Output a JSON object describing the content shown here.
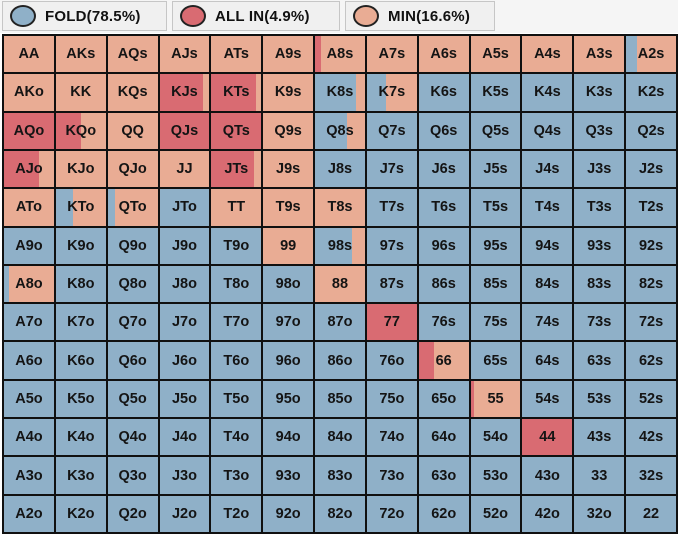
{
  "colors": {
    "fold": "#8fb0c8",
    "allin": "#d96b72",
    "min": "#e9ac94"
  },
  "legend": [
    {
      "action": "fold",
      "label": "FOLD(78.5%)"
    },
    {
      "action": "allin",
      "label": "ALL IN(4.9%)"
    },
    {
      "action": "min",
      "label": "MIN(16.6%)"
    }
  ],
  "grid": {
    "rows": [
      [
        "AA",
        "AKs",
        "AQs",
        "AJs",
        "ATs",
        "A9s",
        "A8s",
        "A7s",
        "A6s",
        "A5s",
        "A4s",
        "A3s",
        "A2s"
      ],
      [
        "AKo",
        "KK",
        "KQs",
        "KJs",
        "KTs",
        "K9s",
        "K8s",
        "K7s",
        "K6s",
        "K5s",
        "K4s",
        "K3s",
        "K2s"
      ],
      [
        "AQo",
        "KQo",
        "QQ",
        "QJs",
        "QTs",
        "Q9s",
        "Q8s",
        "Q7s",
        "Q6s",
        "Q5s",
        "Q4s",
        "Q3s",
        "Q2s"
      ],
      [
        "AJo",
        "KJo",
        "QJo",
        "JJ",
        "JTs",
        "J9s",
        "J8s",
        "J7s",
        "J6s",
        "J5s",
        "J4s",
        "J3s",
        "J2s"
      ],
      [
        "ATo",
        "KTo",
        "QTo",
        "JTo",
        "TT",
        "T9s",
        "T8s",
        "T7s",
        "T6s",
        "T5s",
        "T4s",
        "T3s",
        "T2s"
      ],
      [
        "A9o",
        "K9o",
        "Q9o",
        "J9o",
        "T9o",
        "99",
        "98s",
        "97s",
        "96s",
        "95s",
        "94s",
        "93s",
        "92s"
      ],
      [
        "A8o",
        "K8o",
        "Q8o",
        "J8o",
        "T8o",
        "98o",
        "88",
        "87s",
        "86s",
        "85s",
        "84s",
        "83s",
        "82s"
      ],
      [
        "A7o",
        "K7o",
        "Q7o",
        "J7o",
        "T7o",
        "97o",
        "87o",
        "77",
        "76s",
        "75s",
        "74s",
        "73s",
        "72s"
      ],
      [
        "A6o",
        "K6o",
        "Q6o",
        "J6o",
        "T6o",
        "96o",
        "86o",
        "76o",
        "66",
        "65s",
        "64s",
        "63s",
        "62s"
      ],
      [
        "A5o",
        "K5o",
        "Q5o",
        "J5o",
        "T5o",
        "95o",
        "85o",
        "75o",
        "65o",
        "55",
        "54s",
        "53s",
        "52s"
      ],
      [
        "A4o",
        "K4o",
        "Q4o",
        "J4o",
        "T4o",
        "94o",
        "84o",
        "74o",
        "64o",
        "54o",
        "44",
        "43s",
        "42s"
      ],
      [
        "A3o",
        "K3o",
        "Q3o",
        "J3o",
        "T3o",
        "93o",
        "83o",
        "73o",
        "63o",
        "53o",
        "43o",
        "33",
        "32s"
      ],
      [
        "A2o",
        "K2o",
        "Q2o",
        "J2o",
        "T2o",
        "92o",
        "82o",
        "72o",
        "62o",
        "52o",
        "42o",
        "32o",
        "22"
      ]
    ],
    "mix": {
      "AA": [
        0,
        0,
        1
      ],
      "AKs": [
        0,
        0,
        1
      ],
      "AQs": [
        0,
        0,
        1
      ],
      "AJs": [
        0,
        0,
        1
      ],
      "ATs": [
        0,
        0,
        1
      ],
      "A9s": [
        0,
        0,
        1
      ],
      "A8s": [
        0,
        0.12,
        0.88
      ],
      "A7s": [
        0,
        0,
        1
      ],
      "A6s": [
        0,
        0,
        1
      ],
      "A5s": [
        0,
        0,
        1
      ],
      "A4s": [
        0,
        0,
        1
      ],
      "A3s": [
        0,
        0,
        1
      ],
      "A2s": [
        0.22,
        0,
        0.78
      ],
      "AKo": [
        0,
        0,
        1
      ],
      "KK": [
        0,
        0,
        1
      ],
      "KQs": [
        0,
        0,
        1
      ],
      "KJs": [
        0,
        0.88,
        0.12
      ],
      "KTs": [
        0,
        0.9,
        0.1
      ],
      "K9s": [
        0,
        0,
        1
      ],
      "K8s": [
        0.82,
        0,
        0.18
      ],
      "K7s": [
        0.38,
        0,
        0.62
      ],
      "AQo": [
        0,
        1,
        0
      ],
      "KQo": [
        0,
        0.5,
        0.5
      ],
      "QQ": [
        0,
        0,
        1
      ],
      "QJs": [
        0,
        1,
        0
      ],
      "QTs": [
        0,
        1,
        0
      ],
      "Q9s": [
        0,
        0,
        1
      ],
      "Q8s": [
        0.65,
        0,
        0.35
      ],
      "AJo": [
        0,
        0.7,
        0.3
      ],
      "KJo": [
        0,
        0,
        1
      ],
      "QJo": [
        0,
        0,
        1
      ],
      "JJ": [
        0,
        0,
        1
      ],
      "JTs": [
        0,
        0.85,
        0.15
      ],
      "J9s": [
        0,
        0,
        1
      ],
      "ATo": [
        0,
        0,
        1
      ],
      "KTo": [
        0.35,
        0,
        0.65
      ],
      "QTo": [
        0.15,
        0,
        0.85
      ],
      "TT": [
        0,
        0,
        1
      ],
      "T9s": [
        0,
        0,
        1
      ],
      "T8s": [
        0,
        0,
        1
      ],
      "99": [
        0,
        0,
        1
      ],
      "98s": [
        0.75,
        0,
        0.25
      ],
      "A8o": [
        0.1,
        0,
        0.9
      ],
      "88": [
        0,
        0,
        1
      ],
      "77": [
        0,
        1,
        0
      ],
      "66": [
        0,
        0.3,
        0.7
      ],
      "55": [
        0,
        0.07,
        0.93
      ],
      "44": [
        0,
        1,
        0
      ]
    }
  }
}
